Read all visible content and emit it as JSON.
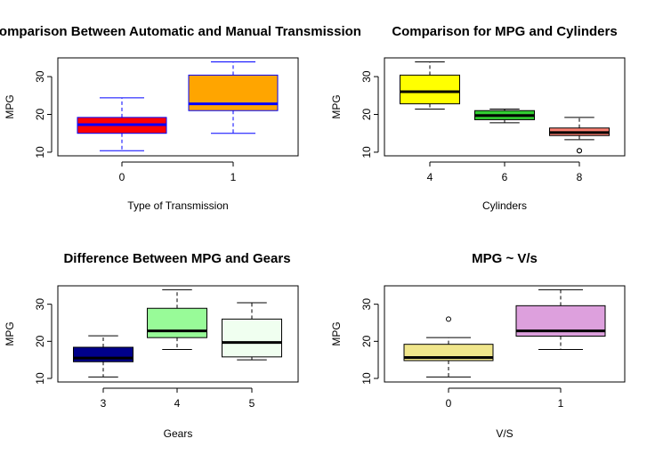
{
  "chart_data": [
    {
      "type": "boxplot",
      "title": "Comparison Between Automatic and Manual Transmission",
      "xlabel": "Type of Transmission",
      "ylabel": "MPG",
      "ylim": [
        10,
        34
      ],
      "yticks": [
        10,
        20,
        30
      ],
      "grid": false,
      "border_color": "#0000FF",
      "categories": [
        "0",
        "1"
      ],
      "colors": [
        "#FF0000",
        "#FFA500"
      ],
      "boxes": [
        {
          "min": 10.4,
          "q1": 15.0,
          "median": 17.3,
          "q3": 19.2,
          "max": 24.4,
          "outliers": []
        },
        {
          "min": 15.0,
          "q1": 21.0,
          "median": 22.8,
          "q3": 30.4,
          "max": 33.9,
          "outliers": []
        }
      ]
    },
    {
      "type": "boxplot",
      "title": "Comparison for MPG and Cylinders",
      "xlabel": "Cylinders",
      "ylabel": "MPG",
      "ylim": [
        10,
        34
      ],
      "yticks": [
        10,
        20,
        30
      ],
      "grid": false,
      "border_color": "#000000",
      "categories": [
        "4",
        "6",
        "8"
      ],
      "colors": [
        "#FFFF00",
        "#32CD32",
        "#FA8072"
      ],
      "boxes": [
        {
          "min": 21.4,
          "q1": 22.8,
          "median": 26.0,
          "q3": 30.4,
          "max": 33.9,
          "outliers": []
        },
        {
          "min": 17.8,
          "q1": 18.6,
          "median": 19.7,
          "q3": 21.0,
          "max": 21.4,
          "outliers": []
        },
        {
          "min": 13.3,
          "q1": 14.4,
          "median": 15.2,
          "q3": 16.4,
          "max": 19.2,
          "outliers": [
            10.4,
            10.4
          ]
        }
      ]
    },
    {
      "type": "boxplot",
      "title": "Difference Between MPG and Gears",
      "xlabel": "Gears",
      "ylabel": "MPG",
      "ylim": [
        10,
        34
      ],
      "yticks": [
        10,
        20,
        30
      ],
      "grid": false,
      "border_color": "#000000",
      "categories": [
        "3",
        "4",
        "5"
      ],
      "colors": [
        "#00008B",
        "#98FB98",
        "#F0FFF0"
      ],
      "boxes": [
        {
          "min": 10.4,
          "q1": 14.5,
          "median": 15.5,
          "q3": 18.4,
          "max": 21.5,
          "outliers": []
        },
        {
          "min": 17.8,
          "q1": 21.0,
          "median": 22.8,
          "q3": 28.9,
          "max": 33.9,
          "outliers": []
        },
        {
          "min": 15.0,
          "q1": 15.8,
          "median": 19.7,
          "q3": 26.0,
          "max": 30.4,
          "outliers": []
        }
      ]
    },
    {
      "type": "boxplot",
      "title": "MPG ~ V/s",
      "xlabel": "V/S",
      "ylabel": "MPG",
      "ylim": [
        10,
        34
      ],
      "yticks": [
        10,
        20,
        30
      ],
      "grid": false,
      "border_color": "#000000",
      "categories": [
        "0",
        "1"
      ],
      "colors": [
        "#F0E68C",
        "#DDA0DD"
      ],
      "boxes": [
        {
          "min": 10.4,
          "q1": 14.8,
          "median": 15.65,
          "q3": 19.2,
          "max": 21.0,
          "outliers": [
            26.0
          ]
        },
        {
          "min": 17.8,
          "q1": 21.4,
          "median": 22.8,
          "q3": 29.6,
          "max": 33.9,
          "outliers": []
        }
      ]
    }
  ]
}
